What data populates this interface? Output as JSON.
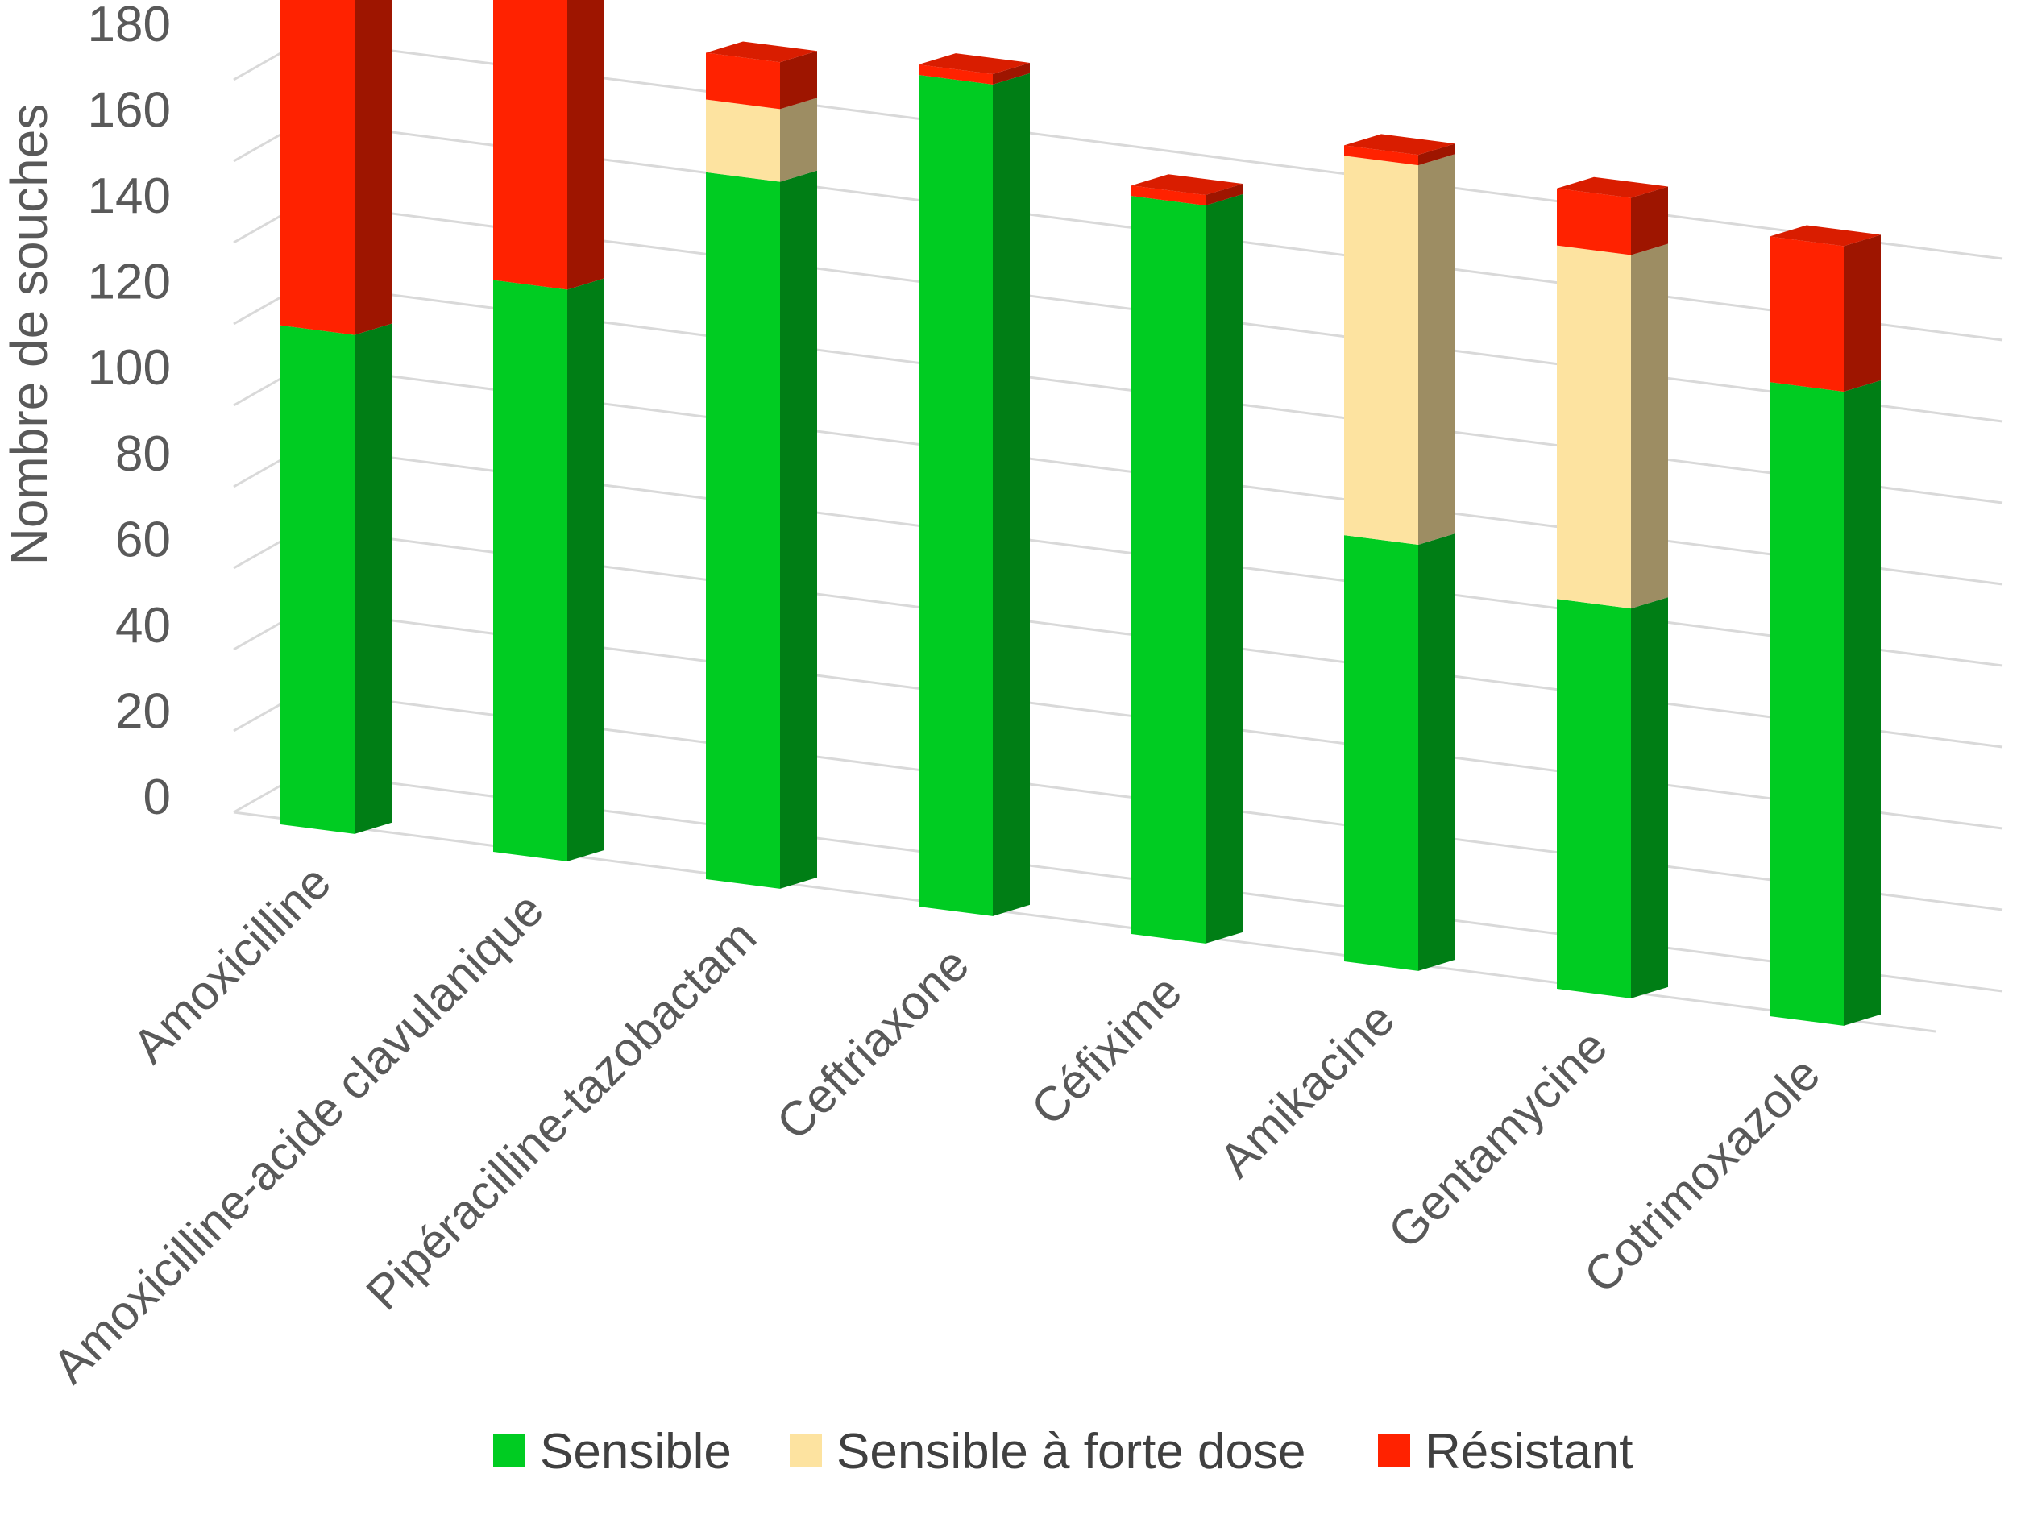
{
  "chart_data": {
    "type": "bar",
    "stacked": true,
    "three_d": true,
    "ylabel": "Nombre de souches",
    "ylim": [
      0,
      180
    ],
    "yticks": [
      0,
      20,
      40,
      60,
      80,
      100,
      120,
      140,
      160,
      180
    ],
    "grid": true,
    "legend_position": "bottom",
    "categories": [
      "Amoxicilline",
      "Amoxicilline-acide clavulanique",
      "Pipéracilline-tazobactam",
      "Ceftriaxone",
      "Céfixime",
      "Amikacine",
      "Gentamycine",
      "Cotrimoxazole"
    ],
    "series": [
      {
        "name": "Sensible",
        "color": "#00CC22",
        "values": [
          96,
          110,
          136,
          160,
          142,
          82,
          75,
          122
        ]
      },
      {
        "name": "Sensible à forte dose",
        "color": "#FDE3A0",
        "values": [
          0,
          0,
          14,
          0,
          0,
          73,
          68,
          0
        ]
      },
      {
        "name": "Résistant",
        "color": "#FF2200",
        "values": [
          77,
          59,
          9,
          2,
          2,
          2,
          11,
          28
        ]
      }
    ]
  }
}
